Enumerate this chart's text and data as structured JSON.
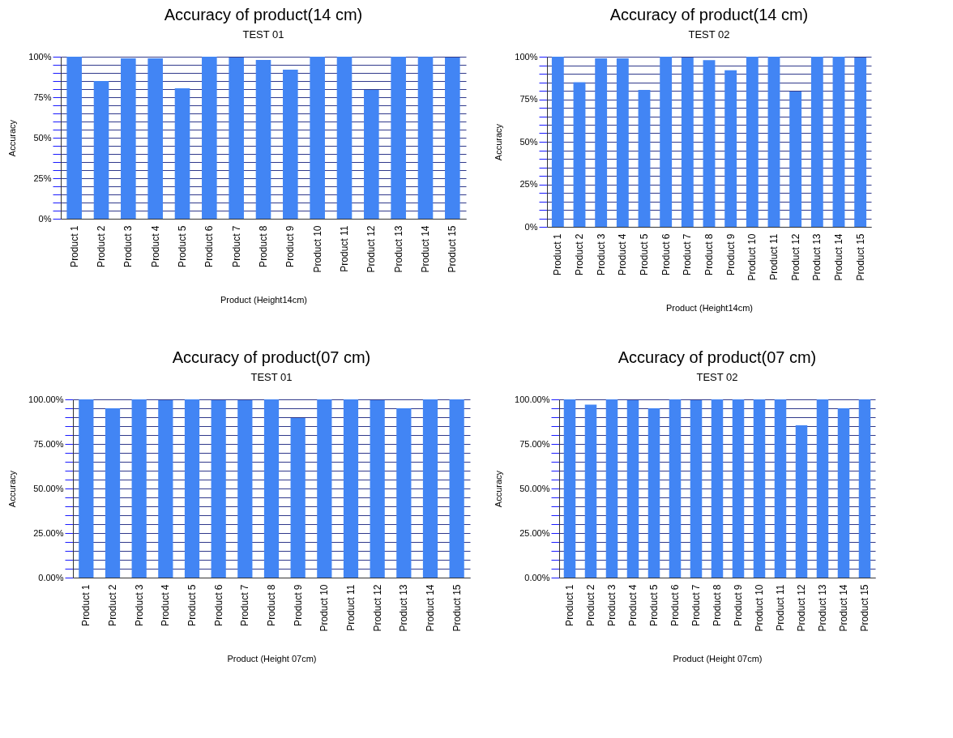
{
  "chart_data": [
    {
      "type": "bar",
      "title": "Accuracy of product(14 cm)",
      "subtitle": "TEST 01",
      "xlabel": "Product (Height14cm)",
      "ylabel": "Accuracy",
      "categories": [
        "Product 1",
        "Product 2",
        "Product 3",
        "Product 4",
        "Product 5",
        "Product 6",
        "Product 7",
        "Product 8",
        "Product 9",
        "Product 10",
        "Product 11",
        "Product 12",
        "Product 13",
        "Product 14",
        "Product 15"
      ],
      "values": [
        100,
        85,
        99,
        99,
        80.5,
        100,
        99.5,
        98,
        92,
        100,
        100,
        79.5,
        100,
        100,
        99.5
      ],
      "color": "#4285f4",
      "ylim": [
        0,
        100
      ],
      "yticks": [
        {
          "value": 0,
          "label": "0%"
        },
        {
          "value": 5,
          "label": null
        },
        {
          "value": 10,
          "label": null
        },
        {
          "value": 15,
          "label": null
        },
        {
          "value": 20,
          "label": null
        },
        {
          "value": 25,
          "label": "25%"
        },
        {
          "value": 30,
          "label": null
        },
        {
          "value": 35,
          "label": null
        },
        {
          "value": 40,
          "label": null
        },
        {
          "value": 45,
          "label": null
        },
        {
          "value": 50,
          "label": "50%"
        },
        {
          "value": 55,
          "label": null
        },
        {
          "value": 60,
          "label": null
        },
        {
          "value": 65,
          "label": null
        },
        {
          "value": 70,
          "label": null
        },
        {
          "value": 75,
          "label": "75%"
        },
        {
          "value": 80,
          "label": null
        },
        {
          "value": 85,
          "label": null
        },
        {
          "value": 90,
          "label": null
        },
        {
          "value": 95,
          "label": null
        },
        {
          "value": 100,
          "label": "100%"
        }
      ],
      "grid": true
    },
    {
      "type": "bar",
      "title": "Accuracy of product(14 cm)",
      "subtitle": "TEST 02",
      "xlabel": "Product (Height14cm)",
      "ylabel": "Accuracy",
      "categories": [
        "Product 1",
        "Product 2",
        "Product 3",
        "Product 4",
        "Product 5",
        "Product 6",
        "Product 7",
        "Product 8",
        "Product 9",
        "Product 10",
        "Product 11",
        "Product 12",
        "Product 13",
        "Product 14",
        "Product 15"
      ],
      "values": [
        100,
        85,
        99,
        99,
        80.5,
        100,
        99.5,
        98,
        92,
        100,
        100,
        79.5,
        100,
        100,
        99.5
      ],
      "color": "#4285f4",
      "ylim": [
        0,
        100
      ],
      "yticks": [
        {
          "value": 0,
          "label": "0%"
        },
        {
          "value": 5,
          "label": null
        },
        {
          "value": 10,
          "label": null
        },
        {
          "value": 15,
          "label": null
        },
        {
          "value": 20,
          "label": null
        },
        {
          "value": 25,
          "label": "25%"
        },
        {
          "value": 30,
          "label": null
        },
        {
          "value": 35,
          "label": null
        },
        {
          "value": 40,
          "label": null
        },
        {
          "value": 45,
          "label": null
        },
        {
          "value": 50,
          "label": "50%"
        },
        {
          "value": 55,
          "label": null
        },
        {
          "value": 60,
          "label": null
        },
        {
          "value": 65,
          "label": null
        },
        {
          "value": 70,
          "label": null
        },
        {
          "value": 75,
          "label": "75%"
        },
        {
          "value": 80,
          "label": null
        },
        {
          "value": 85,
          "label": null
        },
        {
          "value": 90,
          "label": null
        },
        {
          "value": 95,
          "label": null
        },
        {
          "value": 100,
          "label": "100%"
        }
      ],
      "grid": true
    },
    {
      "type": "bar",
      "title": "Accuracy of product(07 cm)",
      "subtitle": "TEST 01",
      "xlabel": "Product (Height 07cm)",
      "ylabel": "Accuracy",
      "categories": [
        "Product 1",
        "Product 2",
        "Product 3",
        "Product 4",
        "Product 5",
        "Product 6",
        "Product 7",
        "Product 8",
        "Product 9",
        "Product 10",
        "Product 11",
        "Product 12",
        "Product 13",
        "Product 14",
        "Product 15"
      ],
      "values": [
        100,
        95,
        100,
        99.5,
        100,
        99.5,
        99.5,
        100,
        89.5,
        100,
        100,
        99.5,
        95,
        100,
        100
      ],
      "color": "#4285f4",
      "ylim": [
        0,
        100
      ],
      "yticks": [
        {
          "value": 0,
          "label": "0.00%"
        },
        {
          "value": 5,
          "label": null
        },
        {
          "value": 10,
          "label": null
        },
        {
          "value": 15,
          "label": null
        },
        {
          "value": 20,
          "label": null
        },
        {
          "value": 25,
          "label": "25.00%"
        },
        {
          "value": 30,
          "label": null
        },
        {
          "value": 35,
          "label": null
        },
        {
          "value": 40,
          "label": null
        },
        {
          "value": 45,
          "label": null
        },
        {
          "value": 50,
          "label": "50.00%"
        },
        {
          "value": 55,
          "label": null
        },
        {
          "value": 60,
          "label": null
        },
        {
          "value": 65,
          "label": null
        },
        {
          "value": 70,
          "label": null
        },
        {
          "value": 75,
          "label": "75.00%"
        },
        {
          "value": 80,
          "label": null
        },
        {
          "value": 85,
          "label": null
        },
        {
          "value": 90,
          "label": null
        },
        {
          "value": 95,
          "label": null
        },
        {
          "value": 100,
          "label": "100.00%"
        }
      ],
      "grid": true
    },
    {
      "type": "bar",
      "title": "Accuracy of product(07 cm)",
      "subtitle": "TEST 02",
      "xlabel": "Product (Height 07cm)",
      "ylabel": "Accuracy",
      "categories": [
        "Product 1",
        "Product 2",
        "Product 3",
        "Product 4",
        "Product 5",
        "Product 6",
        "Product 7",
        "Product 8",
        "Product 9",
        "Product 10",
        "Product 11",
        "Product 12",
        "Product 13",
        "Product 14",
        "Product 15"
      ],
      "values": [
        100,
        97,
        100,
        99.5,
        95,
        100,
        99.5,
        100,
        100,
        100,
        100,
        85.5,
        100,
        95,
        100
      ],
      "color": "#4285f4",
      "ylim": [
        0,
        100
      ],
      "yticks": [
        {
          "value": 0,
          "label": "0.00%"
        },
        {
          "value": 5,
          "label": null
        },
        {
          "value": 10,
          "label": null
        },
        {
          "value": 15,
          "label": null
        },
        {
          "value": 20,
          "label": null
        },
        {
          "value": 25,
          "label": "25.00%"
        },
        {
          "value": 30,
          "label": null
        },
        {
          "value": 35,
          "label": null
        },
        {
          "value": 40,
          "label": null
        },
        {
          "value": 45,
          "label": null
        },
        {
          "value": 50,
          "label": "50.00%"
        },
        {
          "value": 55,
          "label": null
        },
        {
          "value": 60,
          "label": null
        },
        {
          "value": 65,
          "label": null
        },
        {
          "value": 70,
          "label": null
        },
        {
          "value": 75,
          "label": "75.00%"
        },
        {
          "value": 80,
          "label": null
        },
        {
          "value": 85,
          "label": null
        },
        {
          "value": 90,
          "label": null
        },
        {
          "value": 95,
          "label": null
        },
        {
          "value": 100,
          "label": "100.00%"
        }
      ],
      "grid": true
    }
  ]
}
